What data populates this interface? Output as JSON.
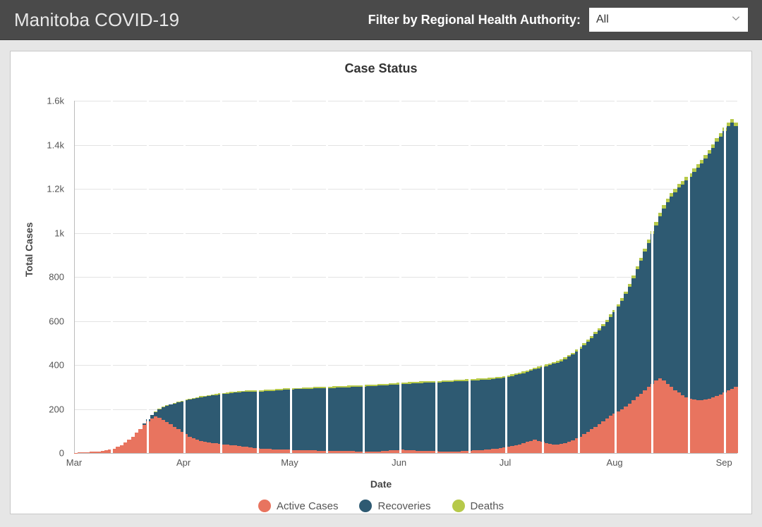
{
  "header": {
    "title": "Manitoba COVID-19",
    "filter_label": "Filter by Regional Health Authority:",
    "selected": "All"
  },
  "chart": {
    "type": "stacked-bar",
    "title": "Case Status",
    "x_label": "Date",
    "y_label": "Total Cases",
    "y_max": 1600,
    "y_ticks": [
      0,
      200,
      400,
      600,
      800,
      1000,
      1200,
      1400,
      1600
    ],
    "y_tick_labels": [
      "0",
      "200",
      "400",
      "600",
      "800",
      "1k",
      "1.2k",
      "1.4k",
      "1.6k"
    ],
    "x_ticks": [
      {
        "pos": 0.0,
        "label": "Mar"
      },
      {
        "pos": 0.165,
        "label": "Apr"
      },
      {
        "pos": 0.325,
        "label": "May"
      },
      {
        "pos": 0.49,
        "label": "Jun"
      },
      {
        "pos": 0.65,
        "label": "Jul"
      },
      {
        "pos": 0.815,
        "label": "Aug"
      },
      {
        "pos": 0.98,
        "label": "Sep"
      }
    ],
    "grid_vertical_positions": [
      0.055,
      0.11,
      0.165,
      0.22,
      0.275,
      0.325,
      0.38,
      0.435,
      0.49,
      0.545,
      0.595,
      0.65,
      0.705,
      0.76,
      0.815,
      0.87,
      0.925,
      0.98
    ],
    "colors": {
      "active": "#e8745f",
      "recoveries": "#2e5a72",
      "deaths": "#b6c94a",
      "background": "#ffffff",
      "grid": "#e3e3e3",
      "axis": "#bbbbbb",
      "text": "#555555"
    },
    "legend": [
      {
        "label": "Active Cases",
        "color": "#e8745f"
      },
      {
        "label": "Recoveries",
        "color": "#2e5a72"
      },
      {
        "label": "Deaths",
        "color": "#b6c94a"
      }
    ],
    "series_comment": "Each entry: [active,recoveries,deaths] — daily, Mar 1 to Sep 8 approx.",
    "data": [
      [
        1,
        0,
        0
      ],
      [
        2,
        0,
        0
      ],
      [
        3,
        0,
        0
      ],
      [
        4,
        0,
        0
      ],
      [
        5,
        0,
        0
      ],
      [
        6,
        0,
        0
      ],
      [
        8,
        0,
        0
      ],
      [
        10,
        0,
        0
      ],
      [
        12,
        0,
        0
      ],
      [
        15,
        0,
        0
      ],
      [
        20,
        0,
        0
      ],
      [
        28,
        0,
        0
      ],
      [
        36,
        0,
        0
      ],
      [
        48,
        0,
        0
      ],
      [
        60,
        0,
        0
      ],
      [
        75,
        0,
        0
      ],
      [
        92,
        0,
        0
      ],
      [
        110,
        0,
        0
      ],
      [
        128,
        5,
        0
      ],
      [
        145,
        10,
        0
      ],
      [
        158,
        15,
        1
      ],
      [
        165,
        22,
        1
      ],
      [
        160,
        40,
        1
      ],
      [
        150,
        58,
        2
      ],
      [
        140,
        75,
        2
      ],
      [
        130,
        90,
        2
      ],
      [
        120,
        105,
        3
      ],
      [
        108,
        122,
        3
      ],
      [
        95,
        140,
        3
      ],
      [
        85,
        155,
        4
      ],
      [
        75,
        168,
        4
      ],
      [
        68,
        178,
        4
      ],
      [
        60,
        190,
        4
      ],
      [
        55,
        198,
        5
      ],
      [
        50,
        205,
        5
      ],
      [
        48,
        210,
        5
      ],
      [
        46,
        215,
        5
      ],
      [
        44,
        220,
        5
      ],
      [
        42,
        225,
        5
      ],
      [
        40,
        228,
        5
      ],
      [
        38,
        232,
        5
      ],
      [
        36,
        236,
        6
      ],
      [
        34,
        240,
        6
      ],
      [
        32,
        244,
        6
      ],
      [
        30,
        247,
        6
      ],
      [
        28,
        250,
        6
      ],
      [
        26,
        253,
        6
      ],
      [
        24,
        255,
        6
      ],
      [
        22,
        258,
        6
      ],
      [
        20,
        260,
        6
      ],
      [
        19,
        262,
        6
      ],
      [
        18,
        264,
        6
      ],
      [
        17,
        266,
        6
      ],
      [
        16,
        268,
        6
      ],
      [
        16,
        270,
        6
      ],
      [
        15,
        272,
        6
      ],
      [
        15,
        273,
        6
      ],
      [
        14,
        275,
        6
      ],
      [
        14,
        276,
        6
      ],
      [
        13,
        277,
        6
      ],
      [
        13,
        278,
        7
      ],
      [
        12,
        279,
        7
      ],
      [
        12,
        280,
        7
      ],
      [
        12,
        281,
        7
      ],
      [
        11,
        282,
        7
      ],
      [
        11,
        283,
        7
      ],
      [
        11,
        284,
        7
      ],
      [
        10,
        285,
        7
      ],
      [
        10,
        286,
        7
      ],
      [
        10,
        287,
        7
      ],
      [
        9,
        288,
        7
      ],
      [
        9,
        289,
        7
      ],
      [
        9,
        290,
        7
      ],
      [
        9,
        291,
        7
      ],
      [
        8,
        292,
        7
      ],
      [
        8,
        293,
        7
      ],
      [
        8,
        294,
        7
      ],
      [
        8,
        295,
        7
      ],
      [
        8,
        296,
        7
      ],
      [
        8,
        297,
        7
      ],
      [
        8,
        298,
        7
      ],
      [
        9,
        298,
        7
      ],
      [
        10,
        298,
        7
      ],
      [
        12,
        298,
        7
      ],
      [
        13,
        298,
        7
      ],
      [
        14,
        298,
        7
      ],
      [
        15,
        298,
        7
      ],
      [
        14,
        300,
        7
      ],
      [
        13,
        302,
        7
      ],
      [
        12,
        304,
        7
      ],
      [
        11,
        306,
        7
      ],
      [
        10,
        308,
        7
      ],
      [
        10,
        309,
        7
      ],
      [
        9,
        310,
        7
      ],
      [
        9,
        311,
        7
      ],
      [
        9,
        312,
        7
      ],
      [
        8,
        313,
        7
      ],
      [
        8,
        314,
        7
      ],
      [
        8,
        315,
        7
      ],
      [
        8,
        316,
        7
      ],
      [
        8,
        317,
        7
      ],
      [
        8,
        318,
        7
      ],
      [
        9,
        318,
        7
      ],
      [
        10,
        318,
        7
      ],
      [
        11,
        318,
        7
      ],
      [
        12,
        318,
        7
      ],
      [
        13,
        318,
        7
      ],
      [
        14,
        318,
        7
      ],
      [
        15,
        318,
        7
      ],
      [
        16,
        318,
        7
      ],
      [
        18,
        318,
        7
      ],
      [
        20,
        318,
        7
      ],
      [
        22,
        318,
        7
      ],
      [
        25,
        318,
        7
      ],
      [
        28,
        318,
        7
      ],
      [
        32,
        318,
        7
      ],
      [
        36,
        318,
        7
      ],
      [
        40,
        318,
        7
      ],
      [
        45,
        318,
        7
      ],
      [
        50,
        318,
        7
      ],
      [
        55,
        320,
        7
      ],
      [
        60,
        320,
        8
      ],
      [
        55,
        330,
        8
      ],
      [
        50,
        340,
        8
      ],
      [
        45,
        350,
        8
      ],
      [
        42,
        358,
        8
      ],
      [
        40,
        365,
        8
      ],
      [
        40,
        370,
        8
      ],
      [
        42,
        375,
        8
      ],
      [
        46,
        380,
        8
      ],
      [
        52,
        385,
        8
      ],
      [
        58,
        390,
        8
      ],
      [
        66,
        395,
        8
      ],
      [
        75,
        400,
        9
      ],
      [
        85,
        405,
        9
      ],
      [
        96,
        410,
        9
      ],
      [
        108,
        415,
        9
      ],
      [
        120,
        420,
        10
      ],
      [
        132,
        425,
        10
      ],
      [
        145,
        430,
        10
      ],
      [
        158,
        438,
        10
      ],
      [
        170,
        448,
        11
      ],
      [
        180,
        460,
        11
      ],
      [
        190,
        475,
        11
      ],
      [
        200,
        492,
        12
      ],
      [
        212,
        510,
        12
      ],
      [
        225,
        530,
        12
      ],
      [
        240,
        555,
        13
      ],
      [
        255,
        580,
        13
      ],
      [
        270,
        605,
        13
      ],
      [
        285,
        630,
        14
      ],
      [
        300,
        655,
        14
      ],
      [
        315,
        680,
        14
      ],
      [
        330,
        705,
        15
      ],
      [
        340,
        735,
        15
      ],
      [
        330,
        780,
        15
      ],
      [
        315,
        825,
        15
      ],
      [
        300,
        865,
        16
      ],
      [
        285,
        900,
        16
      ],
      [
        275,
        930,
        16
      ],
      [
        262,
        958,
        16
      ],
      [
        252,
        985,
        16
      ],
      [
        245,
        1010,
        16
      ],
      [
        242,
        1035,
        16
      ],
      [
        240,
        1055,
        16
      ],
      [
        240,
        1075,
        16
      ],
      [
        242,
        1095,
        16
      ],
      [
        246,
        1115,
        16
      ],
      [
        252,
        1135,
        16
      ],
      [
        258,
        1155,
        16
      ],
      [
        266,
        1172,
        16
      ],
      [
        275,
        1188,
        16
      ],
      [
        284,
        1200,
        16
      ],
      [
        292,
        1210,
        16
      ],
      [
        300,
        1186,
        16
      ]
    ]
  }
}
